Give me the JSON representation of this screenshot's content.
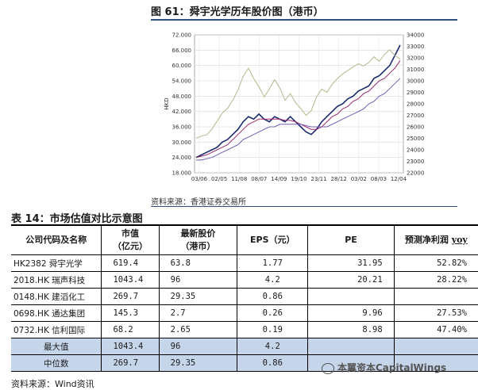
{
  "figure": {
    "title": "图 61：舜宇光学历年股价图（港币）",
    "source": "资料来源：香港证券交易所"
  },
  "chart_data": {
    "type": "line",
    "title": "图 61：舜宇光学历年股价图（港币）",
    "ylabel_left": "HKD",
    "x_ticks": [
      "03/06",
      "02/05",
      "11/08",
      "08/07",
      "14/09",
      "19/10",
      "23/11",
      "28/12",
      "03/02",
      "08/03",
      "12/04"
    ],
    "y_left_ticks": [
      "72.000",
      "66.000",
      "60.000",
      "54.000",
      "48.000",
      "42.000",
      "36.000",
      "30.000",
      "24.000",
      "18.000"
    ],
    "y_left_range": [
      18,
      72
    ],
    "y_right_ticks": [
      "34000",
      "33000",
      "32000",
      "31000",
      "30000",
      "29000",
      "28000",
      "27000",
      "26000",
      "25000",
      "24000",
      "23000",
      "22000"
    ],
    "y_right_range": [
      22000,
      34000
    ],
    "grid": true,
    "series": [
      {
        "name": "",
        "role": "price",
        "color": "#1a2a6c",
        "values": [
          24,
          25,
          26,
          27,
          28,
          30,
          31,
          33,
          35,
          38,
          40,
          39,
          41,
          39,
          38,
          40,
          39,
          38,
          40,
          38,
          36,
          34,
          33,
          35,
          38,
          40,
          42,
          44,
          45,
          47,
          48,
          50,
          51,
          52,
          55,
          56,
          58,
          60,
          64,
          68
        ]
      },
      {
        "name": "",
        "role": "moving-average-short",
        "color": "#9b2b6e",
        "values": [
          24,
          24.5,
          25,
          26,
          27,
          28,
          29,
          31,
          33,
          35,
          37,
          38,
          39,
          39,
          39,
          39,
          39,
          38.5,
          38.5,
          38,
          37,
          36,
          35,
          35,
          36,
          38,
          40,
          41,
          43,
          44,
          46,
          47,
          49,
          50,
          52,
          54,
          55,
          57,
          59,
          62
        ]
      },
      {
        "name": "",
        "role": "moving-average-long",
        "color": "#6f5fb0",
        "values": [
          23,
          23,
          23.5,
          24,
          25,
          26,
          27,
          28,
          29,
          31,
          32,
          33,
          34,
          35,
          36,
          36,
          37,
          37,
          37,
          37,
          37,
          36.5,
          36,
          36,
          36,
          36,
          37,
          38,
          39,
          40,
          41,
          42,
          43,
          45,
          46,
          48,
          49,
          51,
          53,
          55
        ]
      },
      {
        "name": "",
        "role": "index-right-axis",
        "color": "#b9b58e",
        "values": [
          25000,
          25200,
          25300,
          25800,
          26500,
          27200,
          27600,
          28300,
          29200,
          30400,
          31100,
          30200,
          29500,
          28600,
          29300,
          30100,
          29400,
          28300,
          28900,
          28100,
          27600,
          27000,
          27400,
          28600,
          29300,
          29000,
          29700,
          30200,
          30600,
          30900,
          31200,
          31500,
          31300,
          31600,
          32100,
          31700,
          32300,
          32700,
          32200,
          31900
        ]
      }
    ]
  },
  "table": {
    "title": "表 14：市场估值对比示意图",
    "headers": {
      "name": "公司代码及名称",
      "mc_l1": "市值",
      "mc_l2": "（亿元）",
      "px_l1": "最新股价",
      "px_l2": "（港币）",
      "eps": "EPS（元）",
      "pe": "PE",
      "gr_main": "预测净利润 ",
      "gr_yoy": "yoy"
    },
    "rows": [
      {
        "name": "HK2382 舜宇光学",
        "mc": "619.4",
        "px": "63.8",
        "eps": "1.77",
        "pe": "31.95",
        "gr": "52.82%"
      },
      {
        "name": "2018.HK 瑞声科技",
        "mc": "1043.4",
        "px": "96",
        "eps": "4.2",
        "pe": "20.21",
        "gr": "28.22%"
      },
      {
        "name": "0148.HK 建滔化工",
        "mc": "269.7",
        "px": "29.35",
        "eps": "0.86",
        "pe": "",
        "gr": ""
      },
      {
        "name": "0698.HK 通达集团",
        "mc": "145.3",
        "px": "2.7",
        "eps": "0.26",
        "pe": "9.96",
        "gr": "27.53%"
      },
      {
        "name": "0732.HK 信利国际",
        "mc": "68.2",
        "px": "2.65",
        "eps": "0.19",
        "pe": "8.98",
        "gr": "47.40%"
      }
    ],
    "summary": [
      {
        "name": "最大值",
        "mc": "1043.4",
        "px": "96",
        "eps": "4.2",
        "pe": "",
        "gr": ""
      },
      {
        "name": "中位数",
        "mc": "269.7",
        "px": "29.35",
        "eps": "0.86",
        "pe": "",
        "gr": ""
      }
    ],
    "source": "资料来源：Wind资讯"
  },
  "watermark": {
    "text": "本翼资本CapitalWings",
    "icon": "wechat-icon"
  }
}
